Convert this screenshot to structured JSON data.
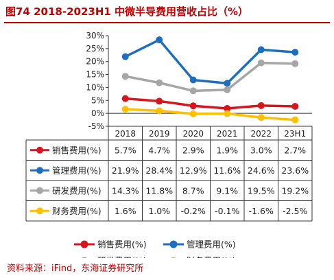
{
  "title": "图74  2018-2023H1 中微半导费用营收占比（%）",
  "source": "资料来源：iFind，东海证券研究所",
  "colors": {
    "brand": "#c00000"
  },
  "chart_data": {
    "type": "line",
    "categories": [
      "2018",
      "2019",
      "2020",
      "2021",
      "2022",
      "23H1"
    ],
    "ylim": [
      -5,
      30
    ],
    "yticks": [
      "30%",
      "25%",
      "20%",
      "15%",
      "10%",
      "5%",
      "0%",
      "-5%"
    ],
    "ytick_values": [
      30,
      25,
      20,
      15,
      10,
      5,
      0,
      -5
    ],
    "grid": false,
    "legend_position": "bottom",
    "series": [
      {
        "name": "销售费用(%)",
        "color": "#d7151e",
        "values": [
          5.7,
          4.7,
          2.9,
          1.9,
          3.0,
          2.7
        ],
        "labels": [
          "5.7%",
          "4.7%",
          "2.9%",
          "1.9%",
          "3.0%",
          "2.7%"
        ]
      },
      {
        "name": "管理费用(%)",
        "color": "#1f6ebd",
        "values": [
          21.9,
          28.4,
          12.9,
          11.6,
          24.6,
          23.6
        ],
        "labels": [
          "21.9%",
          "28.4%",
          "12.9%",
          "11.6%",
          "24.6%",
          "23.6%"
        ]
      },
      {
        "name": "研发费用(%)",
        "color": "#a6a6a6",
        "values": [
          14.3,
          11.8,
          8.7,
          9.1,
          19.5,
          19.2
        ],
        "labels": [
          "14.3%",
          "11.8%",
          "8.7%",
          "9.1%",
          "19.5%",
          "19.2%"
        ]
      },
      {
        "name": "财务费用(%)",
        "color": "#ffc000",
        "values": [
          1.6,
          1.0,
          -0.2,
          -0.1,
          -1.6,
          -2.5
        ],
        "labels": [
          "1.6%",
          "1.0%",
          "-0.2%",
          "-0.1%",
          "-1.6%",
          "-2.5%"
        ]
      }
    ]
  }
}
